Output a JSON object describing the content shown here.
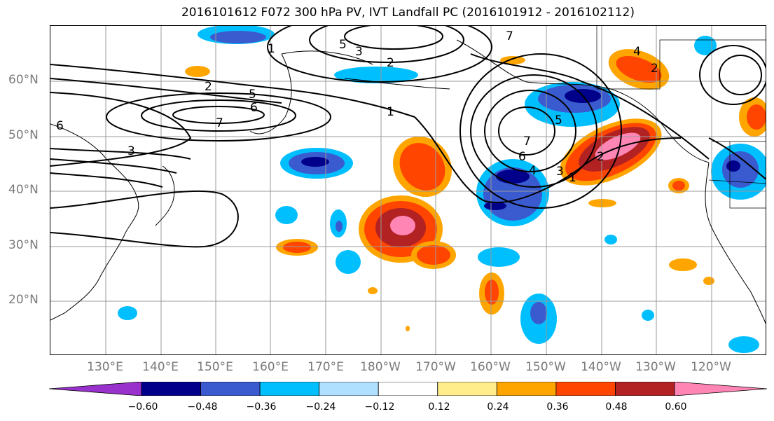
{
  "title": "2016101612 F072 300 hPa PV, IVT Landfall PC (2016101912 - 2016102112)",
  "map": {
    "lat_labels": [
      "60°N",
      "50°N",
      "40°N",
      "30°N",
      "20°N"
    ],
    "lon_labels": [
      "130°E",
      "140°E",
      "150°E",
      "160°E",
      "170°E",
      "180°W",
      "170°W",
      "160°W",
      "150°W",
      "140°W",
      "130°W",
      "120°W"
    ],
    "contour_labels": [
      "5",
      "3",
      "2",
      "1",
      "7",
      "5",
      "3",
      "2",
      "6",
      "7",
      "5",
      "7",
      "6",
      "4",
      "3",
      "1",
      "2",
      "1",
      "6",
      "4",
      "2"
    ]
  },
  "colorbar": {
    "tick_labels": [
      "−0.60",
      "−0.48",
      "−0.36",
      "−0.24",
      "−0.12",
      "0.12",
      "0.24",
      "0.36",
      "0.48",
      "0.60"
    ],
    "colors": [
      "#9932cc",
      "#00008b",
      "#3a5bcf",
      "#00bfff",
      "#b0e0ff",
      "#ffffff",
      "#ffec8b",
      "#ffa500",
      "#ff4500",
      "#b22222",
      "#ff85b4"
    ]
  }
}
